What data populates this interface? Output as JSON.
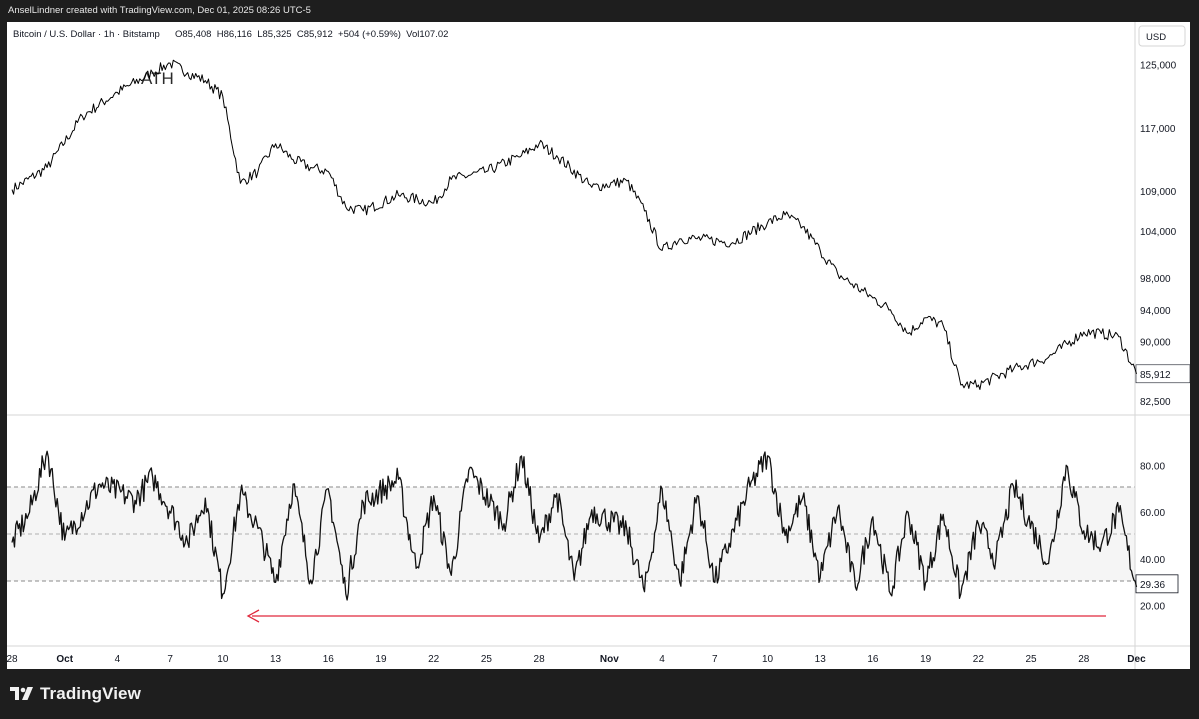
{
  "credit": "AnselLindner created with TradingView.com, Dec 01, 2025 08:26 UTC-5",
  "header": {
    "symbol": "Bitcoin / U.S. Dollar · 1h · Bitstamp",
    "ohlc": "O85,408  H86,116  L85,325  C85,912  +504 (+0.59%)  Vol107.02"
  },
  "currency": "USD",
  "annotation_ath": "ATH",
  "price_axis": {
    "labels": [
      "125,000",
      "117,000",
      "109,000",
      "104,000",
      "98,000",
      "94,000",
      "90,000",
      "82,500"
    ],
    "last_value": "85,912"
  },
  "rsi_axis": {
    "labels": [
      "80.00",
      "60.00",
      "40.00",
      "20.00"
    ],
    "last_value": "29.36"
  },
  "time_axis": [
    "28",
    "Oct",
    "4",
    "7",
    "10",
    "13",
    "16",
    "19",
    "22",
    "25",
    "28",
    "Nov",
    "4",
    "7",
    "10",
    "13",
    "16",
    "19",
    "22",
    "25",
    "28",
    "Dec"
  ],
  "brand": "TradingView",
  "colors": {
    "price_line": "#000000",
    "rsi_line": "#111111",
    "rsi_band": "#f5f5f5",
    "arrow": "#e0283c",
    "frame_dark": "#1e1e1e"
  },
  "chart_data": [
    {
      "type": "line",
      "title": "Bitcoin / U.S. Dollar · 1h · Bitstamp",
      "series": [
        {
          "name": "",
          "x": [
            "Sep 28",
            "Sep 30",
            "Oct 2",
            "Oct 4",
            "Oct 6",
            "Oct 7",
            "Oct 8",
            "Oct 9",
            "Oct 10",
            "Oct 11",
            "Oct 12",
            "Oct 13",
            "Oct 14",
            "Oct 15",
            "Oct 16",
            "Oct 17",
            "Oct 18",
            "Oct 20",
            "Oct 22",
            "Oct 23",
            "Oct 25",
            "Oct 27",
            "Oct 28",
            "Oct 29",
            "Oct 31",
            "Nov 2",
            "Nov 3",
            "Nov 4",
            "Nov 5",
            "Nov 6",
            "Nov 8",
            "Nov 10",
            "Nov 11",
            "Nov 12",
            "Nov 13",
            "Nov 14",
            "Nov 16",
            "Nov 17",
            "Nov 18",
            "Nov 19",
            "Nov 20",
            "Nov 21",
            "Nov 22",
            "Nov 24",
            "Nov 26",
            "Nov 28",
            "Nov 29",
            "Nov 30",
            "Dec 1"
          ],
          "values": [
            109200,
            112000,
            118500,
            121500,
            124000,
            125200,
            124000,
            123000,
            121000,
            110000,
            111500,
            115000,
            113000,
            112000,
            111500,
            107000,
            106500,
            108500,
            107500,
            110500,
            111500,
            113500,
            115000,
            113500,
            109500,
            110300,
            106500,
            101500,
            103000,
            103000,
            102500,
            105000,
            106000,
            104500,
            101500,
            98500,
            95500,
            94000,
            91000,
            93000,
            92000,
            84500,
            84500,
            86500,
            88000,
            91200,
            91000,
            90600,
            85900
          ]
        }
      ],
      "ylabel": "USD",
      "ylim": [
        80700,
        130400
      ],
      "grid": false
    },
    {
      "type": "line",
      "title": "",
      "series": [
        {
          "name": "",
          "x": [
            "Sep 28",
            "Sep 29",
            "Sep 30",
            "Oct 1",
            "Oct 3",
            "Oct 5",
            "Oct 6",
            "Oct 8",
            "Oct 9",
            "Oct 10",
            "Oct 11",
            "Oct 12",
            "Oct 13",
            "Oct 14",
            "Oct 15",
            "Oct 16",
            "Oct 17",
            "Oct 18",
            "Oct 20",
            "Oct 21",
            "Oct 22",
            "Oct 23",
            "Oct 24",
            "Oct 26",
            "Oct 27",
            "Oct 28",
            "Oct 29",
            "Oct 30",
            "Oct 31",
            "Nov 2",
            "Nov 3",
            "Nov 4",
            "Nov 5",
            "Nov 6",
            "Nov 7",
            "Nov 9",
            "Nov 10",
            "Nov 11",
            "Nov 12",
            "Nov 13",
            "Nov 14",
            "Nov 15",
            "Nov 16",
            "Nov 17",
            "Nov 18",
            "Nov 19",
            "Nov 20",
            "Nov 21",
            "Nov 22",
            "Nov 23",
            "Nov 24",
            "Nov 26",
            "Nov 27",
            "Nov 28",
            "Nov 29",
            "Nov 30",
            "Dec 1"
          ],
          "values": [
            47,
            60,
            86,
            48,
            72,
            65,
            75,
            47,
            66,
            25,
            68,
            53,
            30,
            72,
            31,
            70,
            25,
            64,
            74,
            36,
            67,
            33,
            78,
            55,
            84,
            47,
            68,
            31,
            61,
            52,
            26,
            70,
            30,
            67,
            30,
            71,
            84,
            50,
            66,
            32,
            62,
            28,
            58,
            25,
            60,
            30,
            59,
            25,
            55,
            40,
            71,
            38,
            80,
            52,
            46,
            60,
            28
          ]
        }
      ],
      "ylim": [
        4.5,
        98.5
      ],
      "grid": false
    }
  ]
}
